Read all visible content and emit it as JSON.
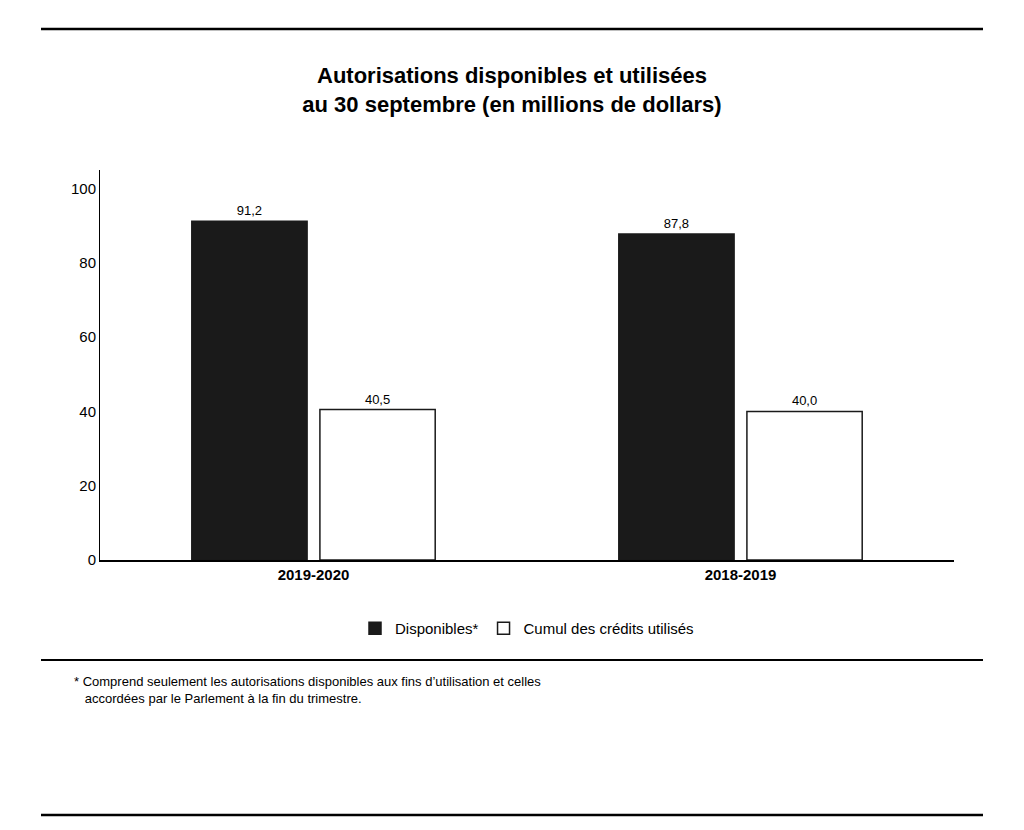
{
  "chart_data": {
    "type": "bar",
    "title": "Autorisations disponibles et utilisées",
    "subtitle": "au 30 septembre (en millions de dollars)",
    "categories": [
      "2019-2020",
      "2018-2019"
    ],
    "series": [
      {
        "name": "Disponibles*",
        "color": "#1a1a1a",
        "values": [
          91.2,
          87.8
        ],
        "value_labels": [
          "91,2",
          "87,8"
        ]
      },
      {
        "name": "Cumul des crédits utilisés",
        "color": "#ffffff",
        "values": [
          40.5,
          40.0
        ],
        "value_labels": [
          "40,5",
          "40,0"
        ]
      }
    ],
    "ylim": [
      0,
      105
    ],
    "yticks": [
      0,
      20,
      40,
      60,
      80,
      100
    ],
    "grid": false,
    "legend": "bottom",
    "data_labels": true,
    "annotations": [
      "* Comprend seulement les autorisations disponibles aux fins d’utilisation et celles",
      "   accordées par le Parlement à la fin du trimestre."
    ]
  }
}
